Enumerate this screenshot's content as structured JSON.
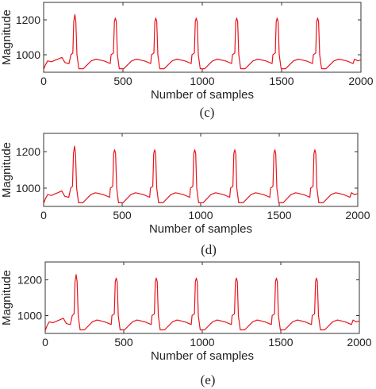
{
  "chart_data": [
    {
      "type": "line",
      "panel_label": "",
      "xlabel": "Number of samples",
      "ylabel": "Magnitude",
      "xlim": [
        0,
        2000
      ],
      "ylim": [
        900,
        1300
      ],
      "xticks": [
        "0",
        "500",
        "1000",
        "1500",
        "2000"
      ],
      "yticks": [
        "1000",
        "1200"
      ],
      "grid": false,
      "series": [
        {
          "name": "",
          "color": "#e8141c",
          "x": [
            0,
            10,
            25,
            50,
            75,
            90,
            115,
            135,
            160,
            172,
            184,
            190,
            197,
            203,
            210,
            222,
            250,
            300,
            330,
            380,
            420,
            425,
            440,
            446,
            452,
            458,
            465,
            477,
            505,
            555,
            585,
            635,
            675,
            680,
            695,
            701,
            707,
            713,
            720,
            732,
            760,
            810,
            840,
            890,
            930,
            935,
            950,
            956,
            962,
            968,
            975,
            987,
            1015,
            1065,
            1095,
            1145,
            1185,
            1190,
            1205,
            1211,
            1217,
            1223,
            1230,
            1242,
            1270,
            1320,
            1350,
            1400,
            1440,
            1445,
            1460,
            1466,
            1472,
            1478,
            1485,
            1497,
            1525,
            1575,
            1605,
            1655,
            1695,
            1700,
            1715,
            1721,
            1727,
            1733,
            1740,
            1752,
            1780,
            1830,
            1860,
            1910,
            1950,
            1960,
            1980,
            2000
          ],
          "values": [
            915,
            940,
            965,
            960,
            970,
            975,
            985,
            955,
            950,
            1000,
            1010,
            1190,
            1230,
            1190,
            1000,
            920,
            920,
            965,
            975,
            965,
            950,
            1000,
            1010,
            1190,
            1210,
            1190,
            1000,
            920,
            920,
            965,
            975,
            965,
            950,
            1000,
            1010,
            1190,
            1210,
            1190,
            1000,
            920,
            920,
            965,
            975,
            965,
            950,
            1000,
            1010,
            1190,
            1210,
            1190,
            1000,
            920,
            920,
            965,
            975,
            965,
            950,
            1000,
            1010,
            1190,
            1210,
            1190,
            1000,
            920,
            920,
            965,
            975,
            965,
            950,
            1000,
            1010,
            1190,
            1210,
            1190,
            1000,
            920,
            920,
            965,
            975,
            965,
            950,
            1000,
            1010,
            1190,
            1210,
            1190,
            1000,
            920,
            920,
            965,
            975,
            965,
            950,
            975,
            965,
            970
          ]
        }
      ]
    },
    {
      "type": "line",
      "panel_label": "(c)",
      "xlabel": "Number of samples",
      "ylabel": "Magnitude",
      "xlim": [
        0,
        2000
      ],
      "ylim": [
        900,
        1300
      ],
      "xticks": [
        "0",
        "500",
        "1000",
        "1500",
        "2000"
      ],
      "yticks": [
        "1000",
        "1200"
      ],
      "grid": false,
      "series": [
        {
          "name": "",
          "color": "#e8141c",
          "x": [
            0,
            10,
            25,
            50,
            75,
            90,
            115,
            135,
            160,
            172,
            184,
            190,
            197,
            203,
            210,
            222,
            250,
            300,
            330,
            380,
            420,
            425,
            440,
            446,
            452,
            458,
            465,
            477,
            505,
            555,
            585,
            635,
            675,
            680,
            695,
            701,
            707,
            713,
            720,
            732,
            760,
            810,
            840,
            890,
            930,
            935,
            950,
            956,
            962,
            968,
            975,
            987,
            1015,
            1065,
            1095,
            1145,
            1185,
            1190,
            1205,
            1211,
            1217,
            1223,
            1230,
            1242,
            1270,
            1320,
            1350,
            1400,
            1440,
            1445,
            1460,
            1466,
            1472,
            1478,
            1485,
            1497,
            1525,
            1575,
            1605,
            1655,
            1695,
            1700,
            1715,
            1721,
            1727,
            1733,
            1740,
            1752,
            1780,
            1830,
            1860,
            1910,
            1950,
            1960,
            1980,
            2000
          ],
          "values": [
            915,
            940,
            965,
            960,
            970,
            975,
            985,
            955,
            950,
            1000,
            1010,
            1190,
            1230,
            1190,
            1000,
            920,
            920,
            965,
            975,
            965,
            950,
            1000,
            1010,
            1190,
            1210,
            1190,
            1000,
            920,
            920,
            965,
            975,
            965,
            950,
            1000,
            1010,
            1190,
            1210,
            1190,
            1000,
            920,
            920,
            965,
            975,
            965,
            950,
            1000,
            1010,
            1190,
            1210,
            1190,
            1000,
            920,
            920,
            965,
            975,
            965,
            950,
            1000,
            1010,
            1190,
            1210,
            1190,
            1000,
            920,
            920,
            965,
            975,
            965,
            950,
            1000,
            1010,
            1190,
            1210,
            1190,
            1000,
            920,
            920,
            965,
            975,
            965,
            950,
            1000,
            1010,
            1190,
            1210,
            1190,
            1000,
            920,
            920,
            965,
            975,
            965,
            950,
            975,
            965,
            970
          ]
        }
      ]
    },
    {
      "type": "line",
      "panel_label": "(d)",
      "xlabel": "Number of samples",
      "ylabel": "Magnitude",
      "xlim": [
        0,
        2000
      ],
      "ylim": [
        900,
        1300
      ],
      "xticks": [
        "0",
        "500",
        "1000",
        "1500",
        "2000"
      ],
      "yticks": [
        "1000",
        "1200"
      ],
      "grid": false,
      "series": [
        {
          "name": "",
          "color": "#e8141c",
          "x": [
            0,
            10,
            25,
            50,
            75,
            90,
            115,
            135,
            160,
            172,
            184,
            190,
            197,
            203,
            210,
            222,
            250,
            300,
            330,
            380,
            420,
            425,
            440,
            446,
            452,
            458,
            465,
            477,
            505,
            555,
            585,
            635,
            675,
            680,
            695,
            701,
            707,
            713,
            720,
            732,
            760,
            810,
            840,
            890,
            930,
            935,
            950,
            956,
            962,
            968,
            975,
            987,
            1015,
            1065,
            1095,
            1145,
            1185,
            1190,
            1205,
            1211,
            1217,
            1223,
            1230,
            1242,
            1270,
            1320,
            1350,
            1400,
            1440,
            1445,
            1460,
            1466,
            1472,
            1478,
            1485,
            1497,
            1525,
            1575,
            1605,
            1655,
            1695,
            1700,
            1715,
            1721,
            1727,
            1733,
            1740,
            1752,
            1780,
            1830,
            1860,
            1910,
            1950,
            1960,
            1980,
            2000
          ],
          "values": [
            915,
            940,
            965,
            960,
            970,
            975,
            985,
            955,
            950,
            1000,
            1010,
            1190,
            1230,
            1190,
            1000,
            920,
            920,
            965,
            975,
            965,
            950,
            1000,
            1010,
            1190,
            1210,
            1190,
            1000,
            920,
            920,
            965,
            975,
            965,
            950,
            1000,
            1010,
            1190,
            1210,
            1190,
            1000,
            920,
            920,
            965,
            975,
            965,
            950,
            1000,
            1010,
            1190,
            1210,
            1190,
            1000,
            920,
            920,
            965,
            975,
            965,
            950,
            1000,
            1010,
            1190,
            1210,
            1190,
            1000,
            920,
            920,
            965,
            975,
            965,
            950,
            1000,
            1010,
            1190,
            1210,
            1190,
            1000,
            920,
            920,
            965,
            975,
            965,
            950,
            1000,
            1010,
            1190,
            1210,
            1190,
            1000,
            920,
            920,
            965,
            975,
            965,
            950,
            975,
            965,
            970
          ]
        }
      ]
    }
  ],
  "bottom_caption": "(e)"
}
